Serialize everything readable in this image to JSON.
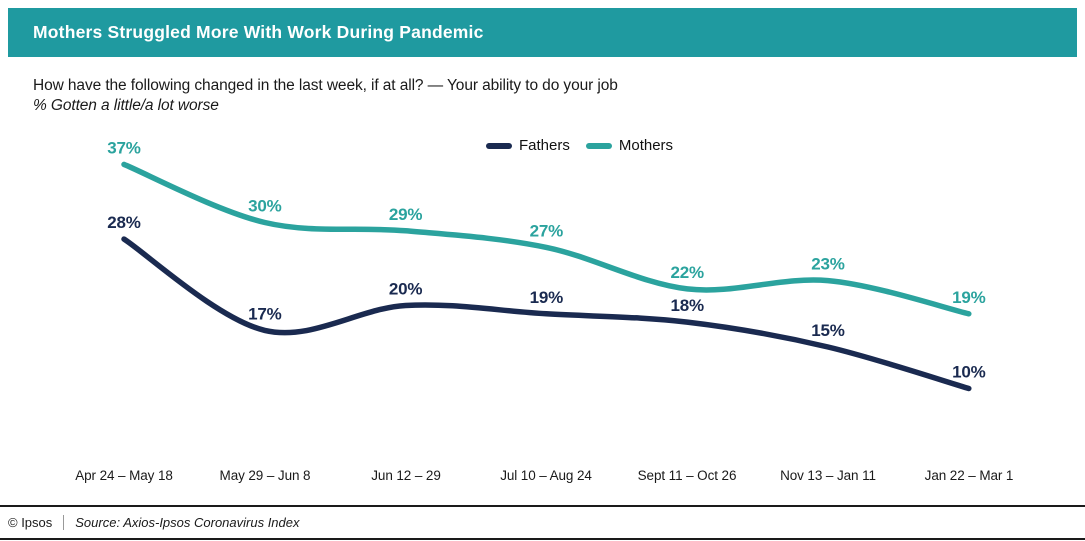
{
  "header": {
    "title": "Mothers Struggled More With Work During Pandemic",
    "bg_color": "#1F9AA0"
  },
  "subtitle": {
    "line1": "How have the following changed in the last week, if at all? — Your ability to do your job",
    "line2": "% Gotten a little/a lot worse"
  },
  "legend": [
    {
      "label": "Fathers",
      "color": "#1A2A50"
    },
    {
      "label": "Mothers",
      "color": "#2BA39E"
    }
  ],
  "chart_data": {
    "type": "line",
    "categories": [
      "Apr 24 – May 18",
      "May 29 – Jun 8",
      "Jun 12 – 29",
      "Jul 10 – Aug 24",
      "Sept 11 – Oct 26",
      "Nov 13 – Jan 11",
      "Jan 22 – Mar 1"
    ],
    "series": [
      {
        "name": "Fathers",
        "color": "#1A2A50",
        "values": [
          28,
          17,
          20,
          19,
          18,
          15,
          10
        ]
      },
      {
        "name": "Mothers",
        "color": "#2BA39E",
        "values": [
          37,
          30,
          29,
          27,
          22,
          23,
          19
        ]
      }
    ],
    "unit": "%",
    "title": "Mothers Struggled More With Work During Pandemic",
    "xlabel": "",
    "ylabel": "% Gotten a little/a lot worse",
    "ylim": [
      0,
      45
    ],
    "grid": false,
    "legend_position": "top-center",
    "data_labels": true
  },
  "footer": {
    "copyright": "© Ipsos",
    "source": "Source: Axios-Ipsos Coronavirus Index"
  }
}
